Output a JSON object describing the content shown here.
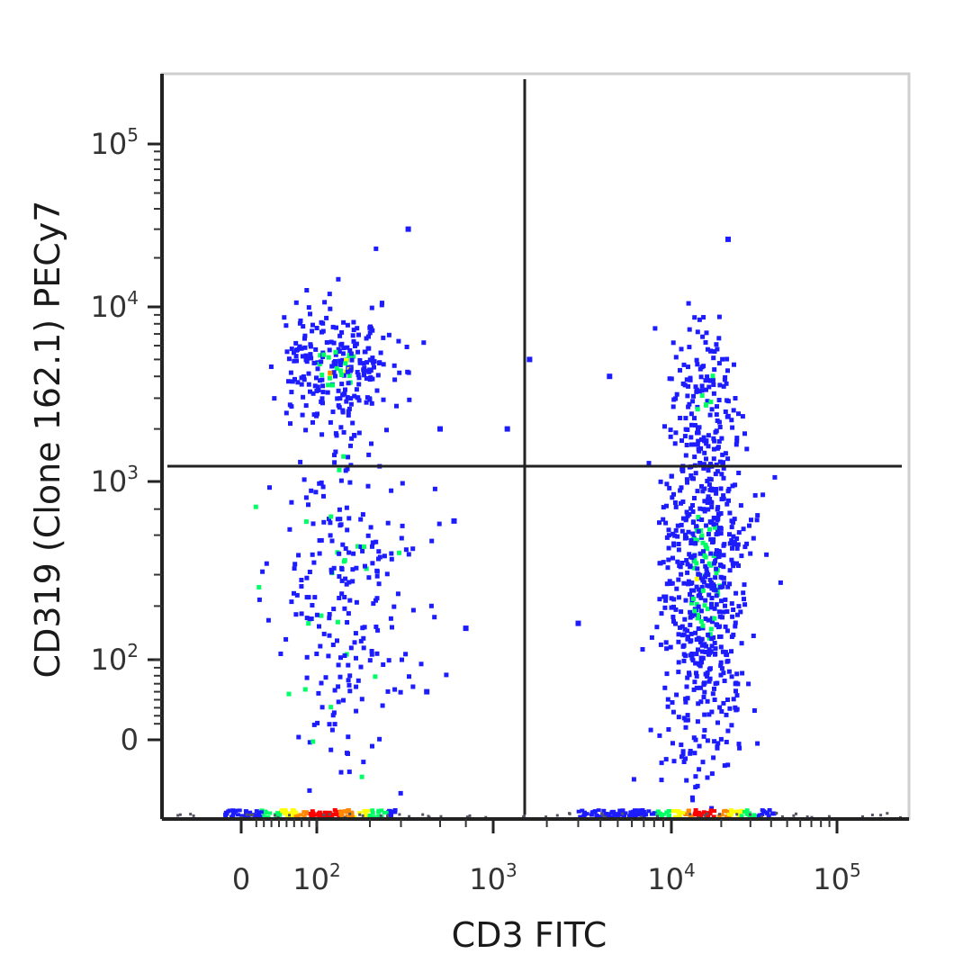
{
  "chart_data": {
    "type": "scatter",
    "title": "",
    "xlabel": "CD3 FITC",
    "ylabel": "CD319 (Clone 162.1) PECy7",
    "x_scale": "biexponential",
    "y_scale": "biexponential",
    "xlim": [
      -80,
      250000
    ],
    "ylim": [
      -80,
      250000
    ],
    "x_ticks": [
      {
        "value": 0,
        "base": "0",
        "exp": ""
      },
      {
        "value": 100,
        "base": "10",
        "exp": "2"
      },
      {
        "value": 1000,
        "base": "10",
        "exp": "3"
      },
      {
        "value": 10000,
        "base": "10",
        "exp": "4"
      },
      {
        "value": 100000,
        "base": "10",
        "exp": "5"
      }
    ],
    "y_ticks": [
      {
        "value": 0,
        "base": "0",
        "exp": ""
      },
      {
        "value": 100,
        "base": "10",
        "exp": "2"
      },
      {
        "value": 1000,
        "base": "10",
        "exp": "3"
      },
      {
        "value": 10000,
        "base": "10",
        "exp": "4"
      },
      {
        "value": 100000,
        "base": "10",
        "exp": "5"
      }
    ],
    "quadrant_gate": {
      "x": 1400,
      "y": 1200
    },
    "color_scale": [
      "#1c1cff",
      "#00ff66",
      "#ffff00",
      "#ff8800",
      "#ff0000"
    ],
    "populations": [
      {
        "center_x": 130,
        "center_y": 4500,
        "spread_x": 0.18,
        "spread_y": 0.2,
        "count": 260,
        "density": "high"
      },
      {
        "center_x": 140,
        "center_y": 250,
        "spread_x": 0.22,
        "spread_y": 0.55,
        "count": 260,
        "density": "low"
      },
      {
        "center_x": 16000,
        "center_y": 300,
        "spread_x": 0.13,
        "spread_y": 0.6,
        "count": 700,
        "density": "high"
      },
      {
        "center_x": 16000,
        "center_y": 3000,
        "spread_x": 0.1,
        "spread_y": 0.25,
        "count": 90,
        "density": "medium"
      }
    ],
    "outliers": [
      {
        "x": 330,
        "y": 30000
      },
      {
        "x": 22000,
        "y": 26000
      },
      {
        "x": 1600,
        "y": 5000
      },
      {
        "x": 4500,
        "y": 4000
      },
      {
        "x": 500,
        "y": 2000
      },
      {
        "x": 1200,
        "y": 2000
      },
      {
        "x": 600,
        "y": 600
      },
      {
        "x": 700,
        "y": 150
      },
      {
        "x": 3000,
        "y": 160
      },
      {
        "x": 420,
        "y": 60
      }
    ]
  }
}
